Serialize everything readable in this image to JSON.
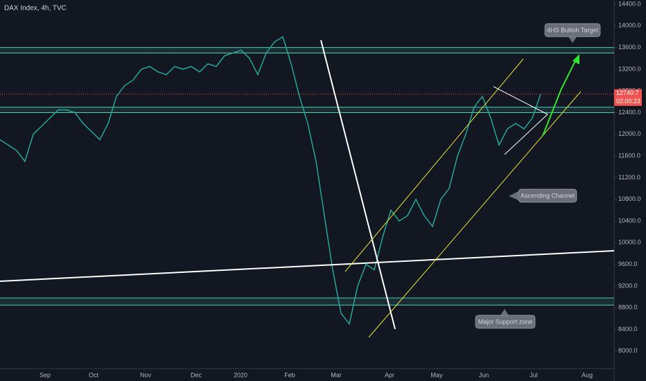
{
  "chart_data": {
    "type": "line",
    "title": "DAX Index, 4h, TVC",
    "x_labels": [
      "Sep",
      "Oct",
      "Nov",
      "Dec",
      "2020",
      "Feb",
      "Mar",
      "Apr",
      "May",
      "Jun",
      "Jul",
      "Aug"
    ],
    "series": [
      {
        "name": "DAX Index",
        "color": "#26a69a",
        "values": [
          11900,
          11800,
          11700,
          11500,
          12000,
          12150,
          12300,
          12450,
          12450,
          12400,
          12200,
          12050,
          11900,
          12200,
          12700,
          12900,
          13000,
          13200,
          13250,
          13150,
          13100,
          13250,
          13200,
          13250,
          13150,
          13300,
          13250,
          13450,
          13500,
          13550,
          13400,
          13100,
          13500,
          13700,
          13800,
          13300,
          12700,
          12200,
          11500,
          10500,
          9500,
          8700,
          8500,
          9200,
          9600,
          9500,
          10100,
          10600,
          10400,
          10500,
          10800,
          10500,
          10300,
          10800,
          11000,
          11600,
          12000,
          12500,
          12700,
          12300,
          11800,
          12100,
          12200,
          12100,
          12300,
          12740
        ]
      }
    ],
    "ylim": [
      7640,
      14477
    ],
    "yticks": [
      {
        "value": 14400,
        "label": "14400.0"
      },
      {
        "value": 14000,
        "label": "14000.0"
      },
      {
        "value": 13600,
        "label": "13600.0"
      },
      {
        "value": 13200,
        "label": "13200.0"
      },
      {
        "value": 12800,
        "label": "12800.0"
      },
      {
        "value": 12400,
        "label": "12400.0"
      },
      {
        "value": 12000,
        "label": "12000.0"
      },
      {
        "value": 11600,
        "label": "11600.0"
      },
      {
        "value": 11200,
        "label": "11200.0"
      },
      {
        "value": 10800,
        "label": "10800.0"
      },
      {
        "value": 10400,
        "label": "10400.0"
      },
      {
        "value": 10000,
        "label": "10000.0"
      },
      {
        "value": 9600,
        "label": "9600.0"
      },
      {
        "value": 9200,
        "label": "9200.0"
      },
      {
        "value": 8800,
        "label": "8800.0"
      },
      {
        "value": 8400,
        "label": "8400.0"
      },
      {
        "value": 8000,
        "label": "8000.0"
      }
    ],
    "zones": [
      {
        "top": 13600,
        "bottom": 13500
      },
      {
        "top": 12500,
        "bottom": 12400
      },
      {
        "top": 8980,
        "bottom": 8850
      }
    ],
    "zone_color": "#4dd0b5",
    "last_price": 12740.7,
    "countdown": "02:00:23",
    "annotations": [
      "4HS Bullish Target",
      "Ascending Channel",
      "Major Support zone"
    ]
  }
}
